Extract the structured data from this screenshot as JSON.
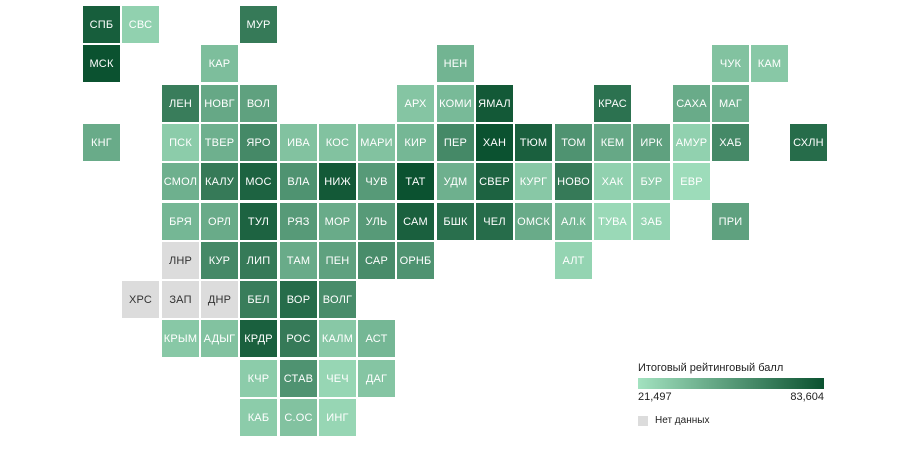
{
  "legend": {
    "title": "Итоговый рейтинговый балл",
    "min_label": "21,497",
    "max_label": "83,604",
    "no_data_label": "Нет данных",
    "color_low": "#a3e2c0",
    "color_high": "#0b5230",
    "no_data_color": "#dcdcdc"
  },
  "regions": [
    {
      "label": "СПБ",
      "col": 0,
      "row": 0,
      "level": 0.92
    },
    {
      "label": "СВС",
      "col": 1,
      "row": 0,
      "level": 0.12
    },
    {
      "label": "МУР",
      "col": 4,
      "row": 0,
      "level": 0.72
    },
    {
      "label": "МСК",
      "col": 0,
      "row": 1,
      "level": 1.0
    },
    {
      "label": "КАР",
      "col": 3,
      "row": 1,
      "level": 0.25
    },
    {
      "label": "НЕН",
      "col": 9,
      "row": 1,
      "level": 0.32
    },
    {
      "label": "ЧУК",
      "col": 16,
      "row": 1,
      "level": 0.22
    },
    {
      "label": "КАМ",
      "col": 17,
      "row": 1,
      "level": 0.18
    },
    {
      "label": "ЛЕН",
      "col": 2,
      "row": 2,
      "level": 0.7
    },
    {
      "label": "НОВГ",
      "col": 3,
      "row": 2,
      "level": 0.4
    },
    {
      "label": "ВОЛ",
      "col": 4,
      "row": 2,
      "level": 0.45
    },
    {
      "label": "АРХ",
      "col": 8,
      "row": 2,
      "level": 0.2
    },
    {
      "label": "КОМИ",
      "col": 9,
      "row": 2,
      "level": 0.28
    },
    {
      "label": "ЯМАЛ",
      "col": 10,
      "row": 2,
      "level": 0.95
    },
    {
      "label": "КРАС",
      "col": 13,
      "row": 2,
      "level": 0.78
    },
    {
      "label": "САХА",
      "col": 15,
      "row": 2,
      "level": 0.38
    },
    {
      "label": "МАГ",
      "col": 16,
      "row": 2,
      "level": 0.35
    },
    {
      "label": "КНГ",
      "col": 0,
      "row": 3,
      "level": 0.38
    },
    {
      "label": "ПСК",
      "col": 2,
      "row": 3,
      "level": 0.15
    },
    {
      "label": "ТВЕР",
      "col": 3,
      "row": 3,
      "level": 0.35
    },
    {
      "label": "ЯРО",
      "col": 4,
      "row": 3,
      "level": 0.62
    },
    {
      "label": "ИВА",
      "col": 5,
      "row": 3,
      "level": 0.22
    },
    {
      "label": "КОС",
      "col": 6,
      "row": 3,
      "level": 0.22
    },
    {
      "label": "МАРИ",
      "col": 7,
      "row": 3,
      "level": 0.22
    },
    {
      "label": "КИР",
      "col": 8,
      "row": 3,
      "level": 0.3
    },
    {
      "label": "ПЕР",
      "col": 9,
      "row": 3,
      "level": 0.62
    },
    {
      "label": "ХАН",
      "col": 10,
      "row": 3,
      "level": 1.0
    },
    {
      "label": "ТЮМ",
      "col": 11,
      "row": 3,
      "level": 0.9
    },
    {
      "label": "ТОМ",
      "col": 12,
      "row": 3,
      "level": 0.55
    },
    {
      "label": "КЕМ",
      "col": 13,
      "row": 3,
      "level": 0.4
    },
    {
      "label": "ИРК",
      "col": 14,
      "row": 3,
      "level": 0.45
    },
    {
      "label": "АМУР",
      "col": 15,
      "row": 3,
      "level": 0.12
    },
    {
      "label": "ХАБ",
      "col": 16,
      "row": 3,
      "level": 0.62
    },
    {
      "label": "СХЛН",
      "col": 18,
      "row": 3,
      "level": 0.82
    },
    {
      "label": "СМОЛ",
      "col": 2,
      "row": 4,
      "level": 0.35
    },
    {
      "label": "КАЛУ",
      "col": 3,
      "row": 4,
      "level": 0.72
    },
    {
      "label": "МОС",
      "col": 4,
      "row": 4,
      "level": 0.88
    },
    {
      "label": "ВЛА",
      "col": 5,
      "row": 4,
      "level": 0.55
    },
    {
      "label": "НИЖ",
      "col": 6,
      "row": 4,
      "level": 0.95
    },
    {
      "label": "ЧУВ",
      "col": 7,
      "row": 4,
      "level": 0.5
    },
    {
      "label": "ТАТ",
      "col": 8,
      "row": 4,
      "level": 1.0
    },
    {
      "label": "УДМ",
      "col": 9,
      "row": 4,
      "level": 0.35
    },
    {
      "label": "СВЕР",
      "col": 10,
      "row": 4,
      "level": 0.88
    },
    {
      "label": "КУРГ",
      "col": 11,
      "row": 4,
      "level": 0.18
    },
    {
      "label": "НОВО",
      "col": 12,
      "row": 4,
      "level": 0.72
    },
    {
      "label": "ХАК",
      "col": 13,
      "row": 4,
      "level": 0.12
    },
    {
      "label": "БУР",
      "col": 14,
      "row": 4,
      "level": 0.15
    },
    {
      "label": "ЕВР",
      "col": 15,
      "row": 4,
      "level": 0.04
    },
    {
      "label": "БРЯ",
      "col": 2,
      "row": 5,
      "level": 0.3
    },
    {
      "label": "ОРЛ",
      "col": 3,
      "row": 5,
      "level": 0.38
    },
    {
      "label": "ТУЛ",
      "col": 4,
      "row": 5,
      "level": 0.88
    },
    {
      "label": "РЯЗ",
      "col": 5,
      "row": 5,
      "level": 0.5
    },
    {
      "label": "МОР",
      "col": 6,
      "row": 5,
      "level": 0.38
    },
    {
      "label": "УЛЬ",
      "col": 7,
      "row": 5,
      "level": 0.5
    },
    {
      "label": "САМ",
      "col": 8,
      "row": 5,
      "level": 0.9
    },
    {
      "label": "БШК",
      "col": 9,
      "row": 5,
      "level": 0.8
    },
    {
      "label": "ЧЕЛ",
      "col": 10,
      "row": 5,
      "level": 0.82
    },
    {
      "label": "ОМСК",
      "col": 11,
      "row": 5,
      "level": 0.38
    },
    {
      "label": "АЛ.К",
      "col": 12,
      "row": 5,
      "level": 0.3
    },
    {
      "label": "ТУВА",
      "col": 13,
      "row": 5,
      "level": 0.06
    },
    {
      "label": "ЗАБ",
      "col": 14,
      "row": 5,
      "level": 0.1
    },
    {
      "label": "ПРИ",
      "col": 16,
      "row": 5,
      "level": 0.45
    },
    {
      "label": "ЛНР",
      "col": 2,
      "row": 6,
      "nodata": true
    },
    {
      "label": "КУР",
      "col": 3,
      "row": 6,
      "level": 0.62
    },
    {
      "label": "ЛИП",
      "col": 4,
      "row": 6,
      "level": 0.72
    },
    {
      "label": "ТАМ",
      "col": 5,
      "row": 6,
      "level": 0.38
    },
    {
      "label": "ПЕН",
      "col": 6,
      "row": 6,
      "level": 0.45
    },
    {
      "label": "САР",
      "col": 7,
      "row": 6,
      "level": 0.6
    },
    {
      "label": "ОРНБ",
      "col": 8,
      "row": 6,
      "level": 0.55
    },
    {
      "label": "АЛТ",
      "col": 12,
      "row": 6,
      "level": 0.1
    },
    {
      "label": "ХРС",
      "col": 1,
      "row": 7,
      "nodata": true
    },
    {
      "label": "ЗАП",
      "col": 2,
      "row": 7,
      "nodata": true
    },
    {
      "label": "ДНР",
      "col": 3,
      "row": 7,
      "nodata": true
    },
    {
      "label": "БЕЛ",
      "col": 4,
      "row": 7,
      "level": 0.7
    },
    {
      "label": "ВОР",
      "col": 5,
      "row": 7,
      "level": 0.82
    },
    {
      "label": "ВОЛГ",
      "col": 6,
      "row": 7,
      "level": 0.6
    },
    {
      "label": "КРЫМ",
      "col": 2,
      "row": 8,
      "level": 0.18
    },
    {
      "label": "АДЫГ",
      "col": 3,
      "row": 8,
      "level": 0.22
    },
    {
      "label": "КРДР",
      "col": 4,
      "row": 8,
      "level": 0.9
    },
    {
      "label": "РОС",
      "col": 5,
      "row": 8,
      "level": 0.72
    },
    {
      "label": "КАЛМ",
      "col": 6,
      "row": 8,
      "level": 0.18
    },
    {
      "label": "АСТ",
      "col": 7,
      "row": 8,
      "level": 0.3
    },
    {
      "label": "КЧР",
      "col": 4,
      "row": 9,
      "level": 0.15
    },
    {
      "label": "СТАВ",
      "col": 5,
      "row": 9,
      "level": 0.55
    },
    {
      "label": "ЧЕЧ",
      "col": 6,
      "row": 9,
      "level": 0.08
    },
    {
      "label": "ДАГ",
      "col": 7,
      "row": 9,
      "level": 0.2
    },
    {
      "label": "КАБ",
      "col": 4,
      "row": 10,
      "level": 0.15
    },
    {
      "label": "С.ОС",
      "col": 5,
      "row": 10,
      "level": 0.22
    },
    {
      "label": "ИНГ",
      "col": 6,
      "row": 10,
      "level": 0.08
    }
  ]
}
